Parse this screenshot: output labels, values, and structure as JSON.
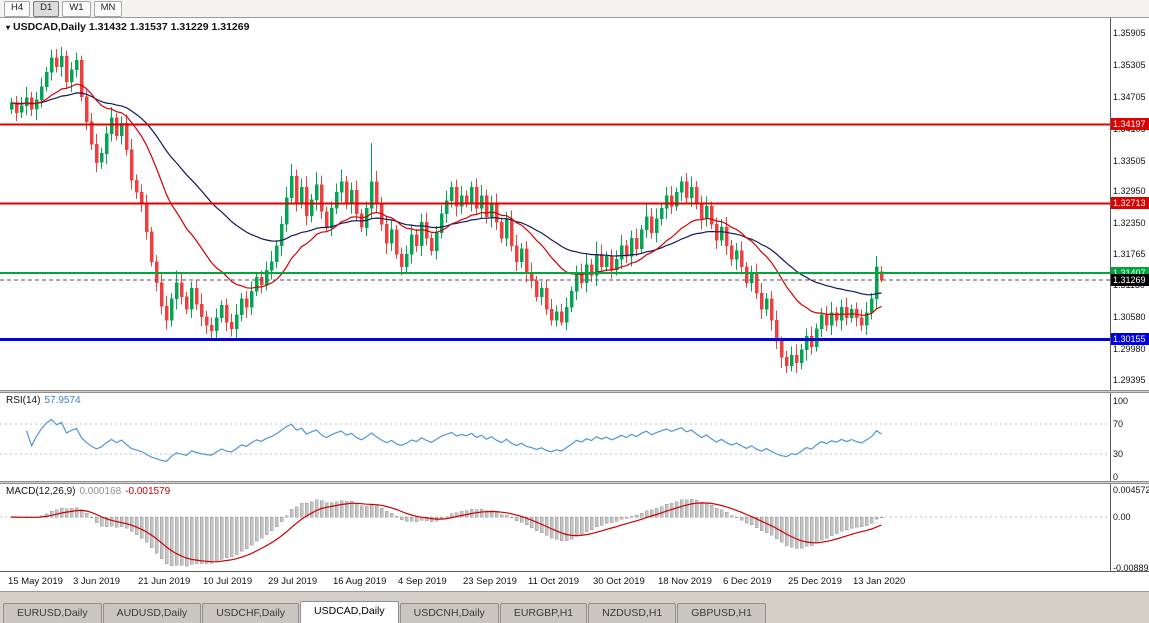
{
  "toolbar": {
    "timeframes": [
      "H4",
      "D1",
      "W1",
      "MN"
    ],
    "active": "D1"
  },
  "chart": {
    "title": "USDCAD,Daily",
    "ohlc": "1.31432 1.31537 1.31229 1.31269",
    "y_axis_labels": [
      "1.35905",
      "1.35305",
      "1.34705",
      "1.34105",
      "1.33505",
      "1.32950",
      "1.32350",
      "1.31765",
      "1.31180",
      "1.30580",
      "1.29980",
      "1.29395"
    ],
    "price_lines": [
      {
        "name": "resistance-upper",
        "price": 1.34197,
        "label": "1.34197",
        "color": "#dd0000",
        "width": 2
      },
      {
        "name": "resistance-lower",
        "price": 1.32713,
        "label": "1.32713",
        "color": "#dd0000",
        "width": 2
      },
      {
        "name": "support-green",
        "price": 1.31407,
        "label": "1.31407",
        "color": "#00a83c",
        "width": 2
      },
      {
        "name": "support-blue",
        "price": 1.30155,
        "label": "1.30155",
        "color": "#0000dd",
        "width": 3
      }
    ],
    "current_price": {
      "value": 1.31269,
      "label": "1.31269",
      "color": "#000000"
    },
    "x_labels": [
      "15 May 2019",
      "3 Jun 2019",
      "21 Jun 2019",
      "10 Jul 2019",
      "29 Jul 2019",
      "16 Aug 2019",
      "4 Sep 2019",
      "23 Sep 2019",
      "11 Oct 2019",
      "30 Oct 2019",
      "18 Nov 2019",
      "6 Dec 2019",
      "25 Dec 2019",
      "13 Jan 2020"
    ]
  },
  "rsi": {
    "label": "RSI(14)",
    "value": "57.9574",
    "period": 14,
    "levels": [
      "100",
      "70",
      "30",
      "0"
    ],
    "level_values": [
      100,
      70,
      30,
      0
    ],
    "color": "#4f96d8"
  },
  "macd": {
    "label": "MACD(12,26,9)",
    "value_main": "0.000168",
    "value_signal": "-0.001579",
    "fast": 12,
    "slow": 26,
    "signal": 9,
    "axis_labels": [
      "0.004572",
      "0.00",
      "-0.008891"
    ]
  },
  "tabs": [
    {
      "label": "EURUSD,Daily",
      "active": false
    },
    {
      "label": "AUDUSD,Daily",
      "active": false
    },
    {
      "label": "USDCHF,Daily",
      "active": false
    },
    {
      "label": "USDCAD,Daily",
      "active": true
    },
    {
      "label": "USDCNH,Daily",
      "active": false
    },
    {
      "label": "EURGBP,H1",
      "active": false
    },
    {
      "label": "NZDUSD,H1",
      "active": false
    },
    {
      "label": "GBPUSD,H1",
      "active": false
    }
  ],
  "style": {
    "candle_up": "#00a651",
    "candle_down": "#ef3e3e",
    "ma_fast": "#d40000",
    "ma_slow": "#16165a",
    "rsi_line": "#4f96d8",
    "macd_hist": "#c4c4c4",
    "macd_hist_edge": "#8f8f8f",
    "macd_signal": "#cc0000"
  },
  "chart_data": {
    "type": "candlestick",
    "symbol": "USDCAD",
    "timeframe": "Daily",
    "open": 1.31432,
    "high": 1.31537,
    "low": 1.31229,
    "close": 1.31269,
    "price_range": [
      1.2928,
      1.3612
    ],
    "bars_per_tick": 13,
    "x_tick_labels": [
      "15 May 2019",
      "3 Jun 2019",
      "21 Jun 2019",
      "10 Jul 2019",
      "29 Jul 2019",
      "16 Aug 2019",
      "4 Sep 2019",
      "23 Sep 2019",
      "11 Oct 2019",
      "30 Oct 2019",
      "18 Nov 2019",
      "6 Dec 2019",
      "25 Dec 2019",
      "13 Jan 2020"
    ],
    "ma_fast_period": 20,
    "ma_slow_period": 45,
    "closes": [
      1.346,
      1.3442,
      1.3455,
      1.347,
      1.3448,
      1.3466,
      1.349,
      1.3518,
      1.3545,
      1.3528,
      1.3548,
      1.35,
      1.3522,
      1.354,
      1.3472,
      1.3425,
      1.3382,
      1.3348,
      1.3365,
      1.3402,
      1.3432,
      1.3398,
      1.3422,
      1.3372,
      1.3315,
      1.3292,
      1.327,
      1.3218,
      1.3162,
      1.3122,
      1.3078,
      1.3052,
      1.3092,
      1.3122,
      1.3096,
      1.3072,
      1.3112,
      1.3082,
      1.3058,
      1.3042,
      1.3032,
      1.3056,
      1.308,
      1.3048,
      1.3036,
      1.3062,
      1.3092,
      1.3076,
      1.3106,
      1.3132,
      1.3118,
      1.3146,
      1.3162,
      1.3192,
      1.3232,
      1.3282,
      1.3322,
      1.3272,
      1.3302,
      1.3248,
      1.3278,
      1.3306,
      1.3256,
      1.3226,
      1.3262,
      1.3292,
      1.3312,
      1.3272,
      1.3296,
      1.3252,
      1.3226,
      1.3262,
      1.3312,
      1.3272,
      1.3232,
      1.3196,
      1.3222,
      1.3176,
      1.3152,
      1.3176,
      1.3212,
      1.3192,
      1.3236,
      1.3206,
      1.3182,
      1.3216,
      1.3252,
      1.3276,
      1.3302,
      1.3266,
      1.3286,
      1.3272,
      1.3302,
      1.3262,
      1.3286,
      1.3246,
      1.3272,
      1.3236,
      1.3206,
      1.3242,
      1.3192,
      1.3162,
      1.3186,
      1.3142,
      1.3126,
      1.3096,
      1.3112,
      1.3072,
      1.3052,
      1.3068,
      1.3048,
      1.3076,
      1.3106,
      1.3142,
      1.3122,
      1.3156,
      1.3136,
      1.3176,
      1.3152,
      1.3172,
      1.3146,
      1.3166,
      1.3192,
      1.3172,
      1.3206,
      1.3186,
      1.3222,
      1.3246,
      1.3216,
      1.3242,
      1.3262,
      1.3286,
      1.3266,
      1.3292,
      1.3312,
      1.3282,
      1.3302,
      1.3272,
      1.3242,
      1.3266,
      1.3232,
      1.3202,
      1.3226,
      1.3192,
      1.3166,
      1.3182,
      1.3152,
      1.3122,
      1.3142,
      1.3102,
      1.3072,
      1.3092,
      1.3052,
      1.3012,
      1.2982,
      1.2966,
      1.2986,
      1.2972,
      1.2996,
      1.3022,
      1.3002,
      1.3036,
      1.3062,
      1.3042,
      1.3066,
      1.3052,
      1.3076,
      1.3056,
      1.3072,
      1.3056,
      1.3042,
      1.3066,
      1.3092,
      1.3152,
      1.31269
    ],
    "open_overrides": {
      "0": 1.3448,
      "174": 1.31432
    },
    "wick_overrides": {
      "8": {
        "h": 1.356
      },
      "10": {
        "h": 1.3565
      },
      "13": {
        "h": 1.3555
      },
      "17": {
        "l": 1.333
      },
      "20": {
        "h": 1.3452
      },
      "26": {
        "l": 1.3255
      },
      "30": {
        "l": 1.3062
      },
      "33": {
        "h": 1.3145
      },
      "39": {
        "l": 1.3026
      },
      "40": {
        "l": 1.3018
      },
      "44": {
        "l": 1.3021
      },
      "55": {
        "h": 1.3302
      },
      "56": {
        "h": 1.3345
      },
      "61": {
        "h": 1.333
      },
      "66": {
        "h": 1.3335
      },
      "72": {
        "h": 1.3385,
        "l": 1.3242
      },
      "78": {
        "l": 1.3136
      },
      "82": {
        "h": 1.3252
      },
      "88": {
        "h": 1.3312
      },
      "92": {
        "h": 1.3312
      },
      "108": {
        "l": 1.3042
      },
      "110": {
        "l": 1.3042
      },
      "117": {
        "h": 1.32
      },
      "127": {
        "h": 1.3272
      },
      "131": {
        "h": 1.3302
      },
      "134": {
        "h": 1.3322
      },
      "154": {
        "l": 1.2962
      },
      "155": {
        "l": 1.2952
      },
      "157": {
        "l": 1.2952
      },
      "173": {
        "h": 1.3172
      },
      "174": {
        "h": 1.31537,
        "l": 1.31229
      }
    }
  }
}
